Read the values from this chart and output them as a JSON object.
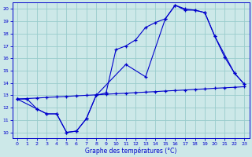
{
  "xlabel": "Graphe des températures (°C)",
  "bg_color": "#cce8e8",
  "grid_color": "#99cccc",
  "line_color": "#0000cc",
  "xlim": [
    -0.5,
    23.5
  ],
  "ylim": [
    9.5,
    20.5
  ],
  "yticks": [
    10,
    11,
    12,
    13,
    14,
    15,
    16,
    17,
    18,
    19,
    20
  ],
  "xticks": [
    0,
    1,
    2,
    3,
    4,
    5,
    6,
    7,
    8,
    9,
    10,
    11,
    12,
    13,
    14,
    15,
    16,
    17,
    18,
    19,
    20,
    21,
    22,
    23
  ],
  "line1_x": [
    0,
    1,
    2,
    3,
    4,
    5,
    6,
    7,
    8,
    9,
    10,
    11,
    12,
    13,
    14,
    15,
    16,
    17,
    18,
    19,
    20,
    21,
    22,
    23
  ],
  "line1_y": [
    12.7,
    12.7,
    11.9,
    11.5,
    11.5,
    10.0,
    10.1,
    11.1,
    13.0,
    13.2,
    16.7,
    17.0,
    17.5,
    18.5,
    18.9,
    19.2,
    20.3,
    20.0,
    19.9,
    19.7,
    17.8,
    16.1,
    14.8,
    13.9
  ],
  "line2_x": [
    0,
    2,
    3,
    4,
    5,
    6,
    7,
    8,
    11,
    13,
    15,
    16,
    17,
    18,
    19,
    20,
    22,
    23
  ],
  "line2_y": [
    12.7,
    11.9,
    11.5,
    11.5,
    10.0,
    10.1,
    11.1,
    13.0,
    15.5,
    14.5,
    19.2,
    20.3,
    19.9,
    19.9,
    19.7,
    17.8,
    14.8,
    13.9
  ],
  "line3_x": [
    0,
    1,
    2,
    3,
    4,
    5,
    6,
    7,
    8,
    9,
    10,
    11,
    12,
    13,
    14,
    15,
    16,
    17,
    18,
    19,
    20,
    21,
    22,
    23
  ],
  "line3_y": [
    12.7,
    12.74,
    12.78,
    12.83,
    12.87,
    12.91,
    12.96,
    13.0,
    13.04,
    13.09,
    13.13,
    13.17,
    13.22,
    13.26,
    13.3,
    13.35,
    13.39,
    13.43,
    13.48,
    13.52,
    13.57,
    13.61,
    13.65,
    13.7
  ]
}
